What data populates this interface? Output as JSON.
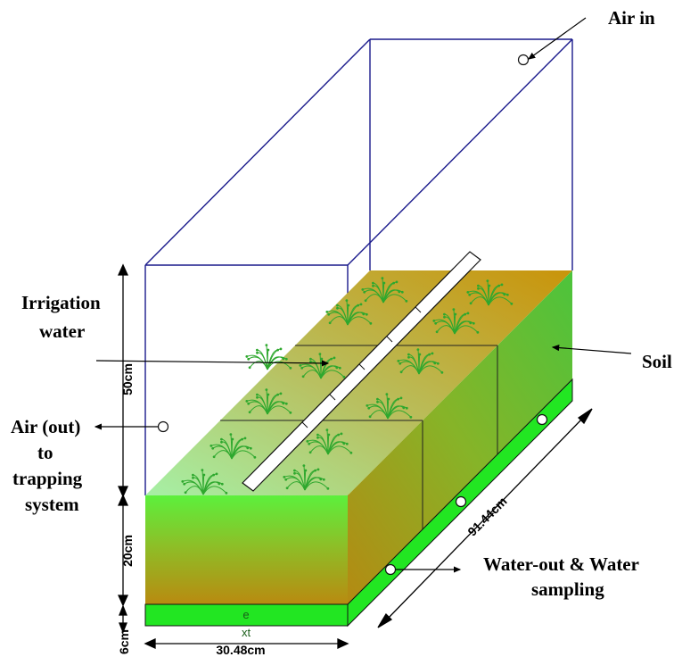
{
  "labels": {
    "air_in": "Air in",
    "irrigation_line1": "Irrigation",
    "irrigation_line2": "water",
    "air_out_line1": "Air (out)",
    "air_out_line2": "to",
    "air_out_line3": "trapping",
    "air_out_line4": "system",
    "soil": "Soil",
    "water_out_line1": "Water-out & Water",
    "water_out_line2": "sampling"
  },
  "dimensions": {
    "height_chamber": "50cm",
    "height_soil": "20cm",
    "height_base": "6cm",
    "width": "30.48cm",
    "length": "91.44cm"
  },
  "small_text": {
    "base_top": "e",
    "base_bottom": "xt"
  },
  "colors": {
    "outline_chamber": "#1a1a8c",
    "soil_brown": "#b8860b",
    "soil_green": "#7fdc3c",
    "base_green": "#22e622",
    "plant": "#2ea82e"
  }
}
